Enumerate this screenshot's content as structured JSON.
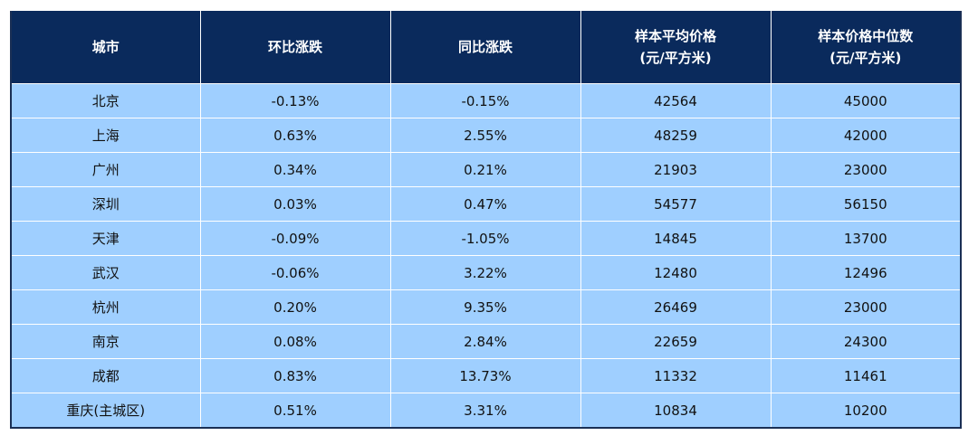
{
  "table": {
    "headers": [
      [
        "城市"
      ],
      [
        "环比涨跌"
      ],
      [
        "同比涨跌"
      ],
      [
        "样本平均价格",
        "(元/平方米)"
      ],
      [
        "样本价格中位数",
        "(元/平方米)"
      ]
    ],
    "rows": [
      [
        "北京",
        "-0.13%",
        "-0.15%",
        "42564",
        "45000"
      ],
      [
        "上海",
        "0.63%",
        "2.55%",
        "48259",
        "42000"
      ],
      [
        "广州",
        "0.34%",
        "0.21%",
        "21903",
        "23000"
      ],
      [
        "深圳",
        "0.03%",
        "0.47%",
        "54577",
        "56150"
      ],
      [
        "天津",
        "-0.09%",
        "-1.05%",
        "14845",
        "13700"
      ],
      [
        "武汉",
        "-0.06%",
        "3.22%",
        "12480",
        "12496"
      ],
      [
        "杭州",
        "0.20%",
        "9.35%",
        "26469",
        "23000"
      ],
      [
        "南京",
        "0.08%",
        "2.84%",
        "22659",
        "24300"
      ],
      [
        "成都",
        "0.83%",
        "13.73%",
        "11332",
        "11461"
      ],
      [
        "重庆(主城区)",
        "0.51%",
        "3.31%",
        "10834",
        "10200"
      ]
    ]
  },
  "colors": {
    "header_bg": "#0a2a5c",
    "row_bg": "#9fcfff",
    "grid": "#ffffff"
  }
}
